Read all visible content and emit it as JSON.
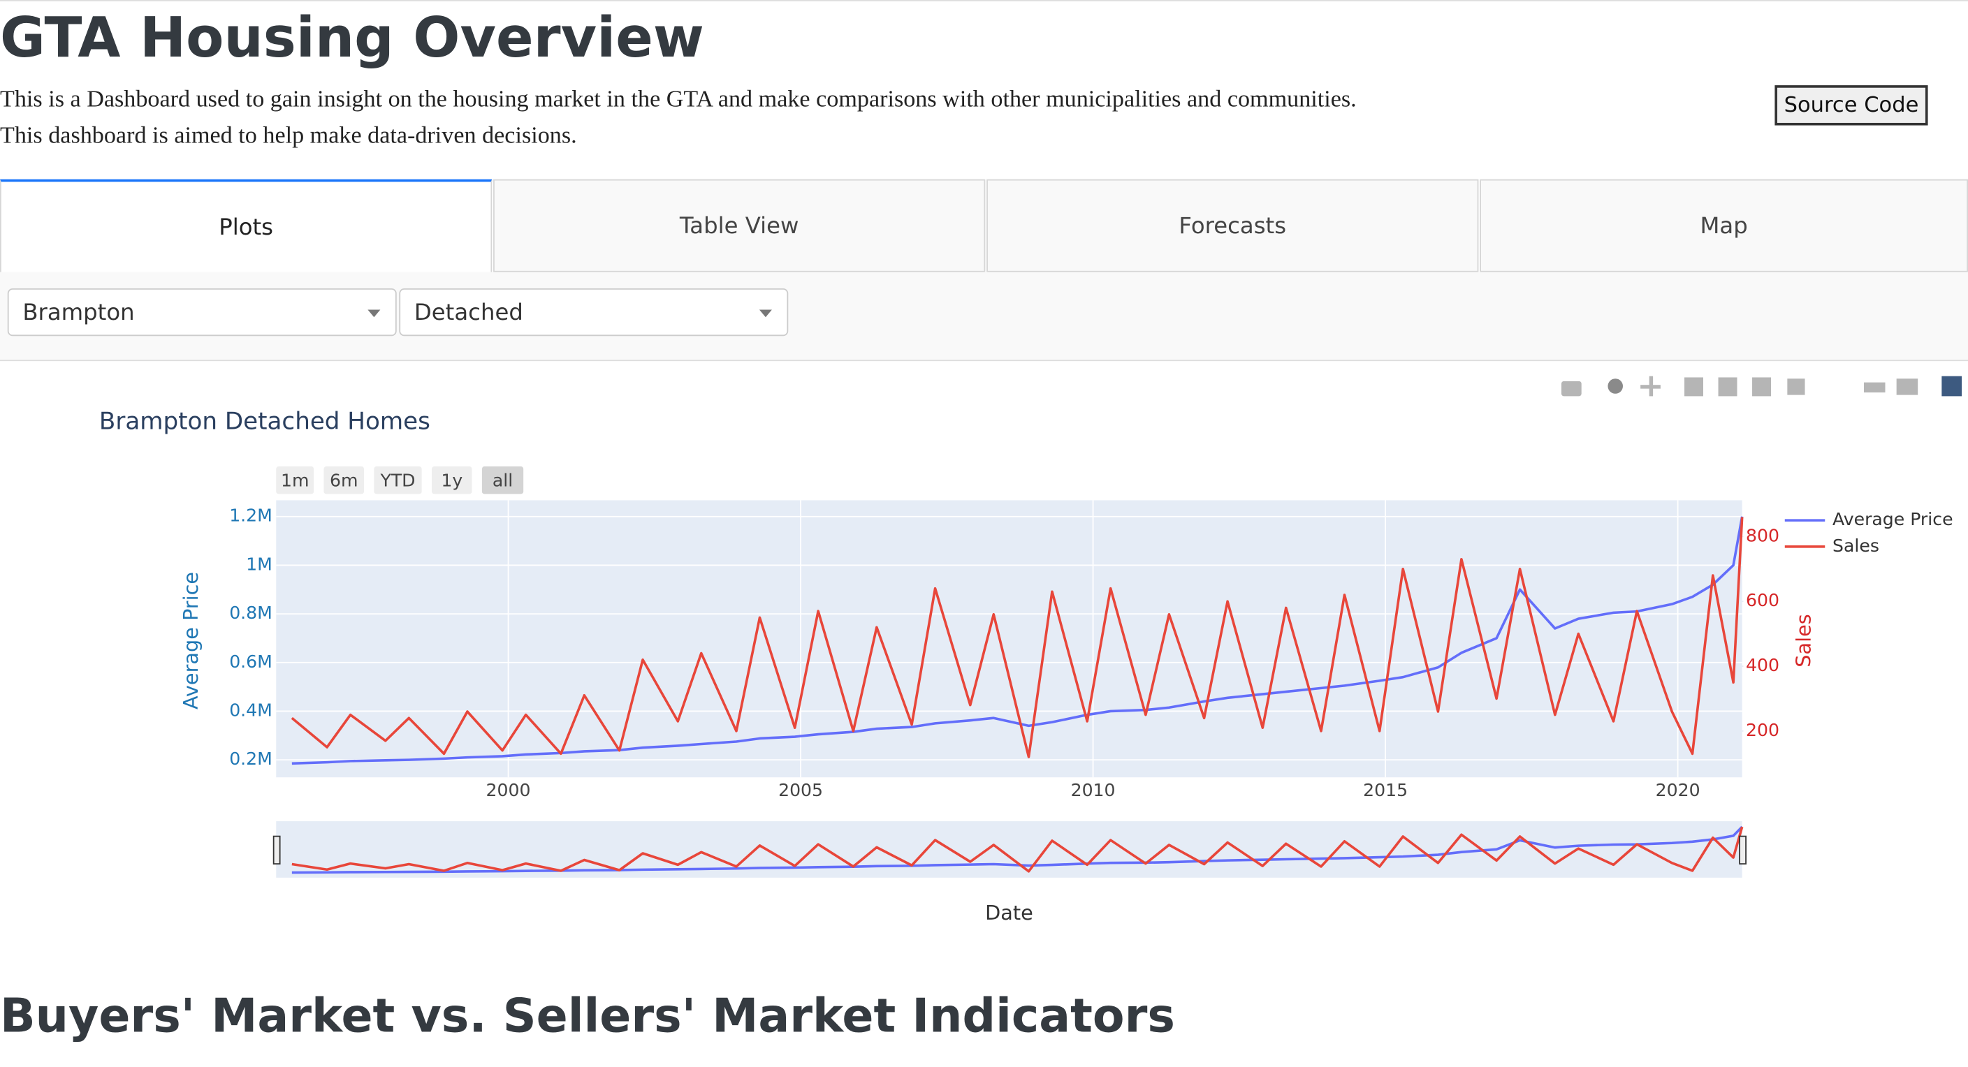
{
  "header": {
    "title": "GTA Housing Overview",
    "description": [
      "This is a Dashboard used to gain insight on the housing market in the GTA and make comparisons with other municipalities and communities.",
      "This dashboard is aimed to help make data-driven decisions."
    ],
    "source_button": "Source Code"
  },
  "tabs": [
    "Plots",
    "Table View",
    "Forecasts",
    "Map"
  ],
  "dropdowns": [
    "Brampton",
    "Detached"
  ],
  "range_buttons": [
    "1m",
    "6m",
    "YTD",
    "1y",
    "all"
  ],
  "chart_data": {
    "type": "line",
    "title": "Brampton Detached Homes",
    "xlabel": "Date",
    "ylabel": "Average Price",
    "y2label": "Sales",
    "x": [
      1996.3,
      1996.9,
      1997.3,
      1997.9,
      1998.3,
      1998.9,
      1999.3,
      1999.9,
      2000.3,
      2000.9,
      2001.3,
      2001.9,
      2002.3,
      2002.9,
      2003.3,
      2003.9,
      2004.3,
      2004.9,
      2005.3,
      2005.9,
      2006.3,
      2006.9,
      2007.3,
      2007.9,
      2008.3,
      2008.9,
      2009.3,
      2009.9,
      2010.3,
      2010.9,
      2011.3,
      2011.9,
      2012.3,
      2012.9,
      2013.3,
      2013.9,
      2014.3,
      2014.9,
      2015.3,
      2015.9,
      2016.3,
      2016.9,
      2017.3,
      2017.9,
      2018.3,
      2018.9,
      2019.3,
      2019.9,
      2020.25,
      2020.6,
      2020.95,
      2021.1
    ],
    "series": [
      {
        "name": "Average Price",
        "color": "#636efa",
        "axis": "y",
        "values": [
          185000,
          190000,
          195000,
          198000,
          200000,
          205000,
          210000,
          215000,
          222000,
          228000,
          235000,
          240000,
          250000,
          258000,
          265000,
          275000,
          288000,
          295000,
          305000,
          315000,
          328000,
          335000,
          350000,
          362000,
          372000,
          340000,
          355000,
          385000,
          400000,
          405000,
          415000,
          440000,
          455000,
          470000,
          480000,
          495000,
          505000,
          525000,
          540000,
          580000,
          640000,
          700000,
          900000,
          740000,
          780000,
          805000,
          810000,
          840000,
          870000,
          920000,
          1000000,
          1200000
        ]
      },
      {
        "name": "Sales",
        "color": "#e8463a",
        "axis": "y2",
        "values": [
          240,
          150,
          250,
          170,
          240,
          130,
          260,
          140,
          250,
          130,
          310,
          140,
          420,
          230,
          440,
          200,
          550,
          210,
          570,
          200,
          520,
          220,
          640,
          280,
          560,
          120,
          630,
          230,
          640,
          250,
          560,
          240,
          600,
          210,
          580,
          200,
          620,
          200,
          700,
          260,
          730,
          300,
          700,
          250,
          500,
          230,
          570,
          260,
          130,
          680,
          350,
          860
        ]
      }
    ],
    "xlim": [
      1996.03,
      2021.1
    ],
    "xticks": [
      2000,
      2005,
      2010,
      2015,
      2020
    ],
    "ylim": [
      128000,
      1267000
    ],
    "yticks": [
      {
        "value": 200000,
        "label": "0.2M"
      },
      {
        "value": 400000,
        "label": "0.4M"
      },
      {
        "value": 600000,
        "label": "0.6M"
      },
      {
        "value": 800000,
        "label": "0.8M"
      },
      {
        "value": 1000000,
        "label": "1M"
      },
      {
        "value": 1200000,
        "label": "1.2M"
      }
    ],
    "y2lim": [
      57,
      912
    ],
    "y2ticks": [
      200,
      400,
      600,
      800
    ],
    "grid": true
  },
  "section": {
    "title": "Buyers' Market vs. Sellers' Market Indicators"
  }
}
